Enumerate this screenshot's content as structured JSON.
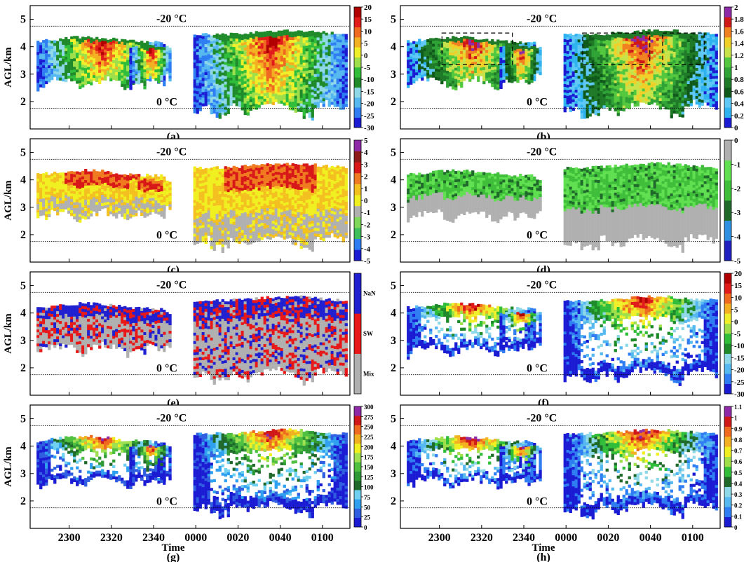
{
  "figure": {
    "y_axis_label": "AGL/km",
    "x_axis_label": "Time",
    "y_ticks": [
      "2",
      "3",
      "4",
      "5"
    ],
    "x_ticks": [
      "2300",
      "2320",
      "2340",
      "0000",
      "0020",
      "0040",
      "0100"
    ],
    "temperature_lines": [
      {
        "label": "-20 °C",
        "height_km": 4.75
      },
      {
        "label": "0 °C",
        "height_km": 1.75
      }
    ]
  },
  "chart_data": [
    {
      "type": "heatmap",
      "panel": "(a)",
      "ylabel": "AGL/km",
      "ylim": [
        1,
        5.5
      ],
      "x_range": [
        "2245",
        "0100"
      ],
      "colorbar": {
        "ticks": [
          "20",
          "15",
          "10",
          "5",
          "0",
          "-5",
          "-10",
          "-15",
          "-20",
          "-25",
          "-30"
        ],
        "range": [
          -30,
          20
        ]
      },
      "colors": [
        "#1b1bd4",
        "#2f7df2",
        "#55b9f0",
        "#8fd8e8",
        "#1f8a2a",
        "#2fbd3a",
        "#9fe04a",
        "#f0f02a",
        "#f3b020",
        "#ef6a1f",
        "#e11a1a",
        "#b00000"
      ],
      "dashed_boxes": false
    },
    {
      "type": "heatmap",
      "panel": "(b)",
      "ylim": [
        1,
        5.5
      ],
      "x_range": [
        "2245",
        "0100"
      ],
      "colorbar": {
        "ticks": [
          "2",
          "1.8",
          "1.6",
          "1.4",
          "1.2",
          "1",
          "0.8",
          "0.6",
          "0.4",
          "0.2",
          "0"
        ],
        "range": [
          0,
          2
        ]
      },
      "colors": [
        "#1b1bd4",
        "#2fb3f0",
        "#5fc8f5",
        "#0f5a1a",
        "#1f7a28",
        "#2fa335",
        "#53c83f",
        "#c8e34a",
        "#f0d028",
        "#f08020",
        "#d01818",
        "#8e2aa8"
      ],
      "dashed_boxes": true
    },
    {
      "type": "heatmap",
      "panel": "(c)",
      "ylabel": "AGL/km",
      "ylim": [
        1,
        5.5
      ],
      "x_range": [
        "2245",
        "0100"
      ],
      "colorbar": {
        "ticks": [
          "5",
          "4",
          "3",
          "2",
          "1",
          "0",
          "-1",
          "-2",
          "-3",
          "-4",
          "-5"
        ],
        "range": [
          -5,
          5
        ]
      },
      "colors": [
        "#1b1bd4",
        "#2f7df2",
        "#3fbf5a",
        "#7fd85a",
        "#b0b0b0",
        "#f0f020",
        "#f3c020",
        "#ef7a1f",
        "#d81818",
        "#8e1a1a",
        "#8e2aa8"
      ],
      "dashed_boxes": false
    },
    {
      "type": "heatmap",
      "panel": "(d)",
      "ylim": [
        1,
        5.5
      ],
      "x_range": [
        "2245",
        "0100"
      ],
      "colorbar": {
        "ticks": [
          "0",
          "-1",
          "-2",
          "-3",
          "-4",
          "-5"
        ],
        "range": [
          -5,
          0
        ]
      },
      "colors": [
        "#2020c0",
        "#2f8fe0",
        "#1f6a2a",
        "#3fbe3a",
        "#60e050",
        "#b0b0b0"
      ],
      "dashed_boxes": false
    },
    {
      "type": "heatmap",
      "panel": "(e)",
      "ylabel": "AGL/km",
      "ylim": [
        1,
        5.5
      ],
      "x_range": [
        "2245",
        "0100"
      ],
      "colorbar": {
        "categories": [
          "NaN",
          "SW",
          "Mix"
        ]
      },
      "colors": [
        "#b0b0b0",
        "#e81818",
        "#2020d0"
      ],
      "dashed_boxes": false
    },
    {
      "type": "heatmap",
      "panel": "(f)",
      "ylim": [
        1,
        5.5
      ],
      "x_range": [
        "2245",
        "0100"
      ],
      "colorbar": {
        "ticks": [
          "20",
          "15",
          "10",
          "5",
          "0",
          "-5",
          "-10",
          "-15",
          "-20",
          "-25",
          "-30"
        ],
        "range": [
          -30,
          20
        ]
      },
      "colors": [
        "#1b1bd4",
        "#2f7df2",
        "#55b9f0",
        "#8fd8e8",
        "#1f8a2a",
        "#2fbd3a",
        "#9fe04a",
        "#f0f02a",
        "#f3b020",
        "#ef6a1f",
        "#e11a1a",
        "#b00000"
      ],
      "dashed_boxes": false
    },
    {
      "type": "heatmap",
      "panel": "(g)",
      "ylabel": "AGL/km",
      "xlabel": "Time",
      "ylim": [
        1,
        5.5
      ],
      "x_range": [
        "2245",
        "0100"
      ],
      "colorbar": {
        "ticks": [
          "300",
          "275",
          "250",
          "225",
          "200",
          "175",
          "150",
          "125",
          "100",
          "75",
          "50",
          "25",
          "0"
        ],
        "range": [
          0,
          300
        ]
      },
      "colors": [
        "#1b1bd4",
        "#2f5fe0",
        "#2fa0f0",
        "#6fd0f0",
        "#1f6a2a",
        "#2f9a35",
        "#4fc040",
        "#9fe050",
        "#f0f020",
        "#f0b020",
        "#ef6a1f",
        "#d01818",
        "#8e2aa8"
      ],
      "dashed_boxes": false
    },
    {
      "type": "heatmap",
      "panel": "(h)",
      "xlabel": "Time",
      "ylim": [
        1,
        5.5
      ],
      "x_range": [
        "2245",
        "0100"
      ],
      "colorbar": {
        "ticks": [
          "1.1",
          "1",
          "0.9",
          "0.8",
          "0.7",
          "0.6",
          "0.5",
          "0.4",
          "0.3",
          "0.2",
          "0.1",
          "0"
        ],
        "range": [
          0,
          1.1
        ]
      },
      "colors": [
        "#1b1bd4",
        "#2f7df2",
        "#55b9f0",
        "#8fd8e8",
        "#1f6a2a",
        "#2fbd3a",
        "#9fe04a",
        "#f0f020",
        "#f3b020",
        "#ef6a1f",
        "#d01818",
        "#8e2aa8"
      ],
      "dashed_boxes": false
    }
  ]
}
